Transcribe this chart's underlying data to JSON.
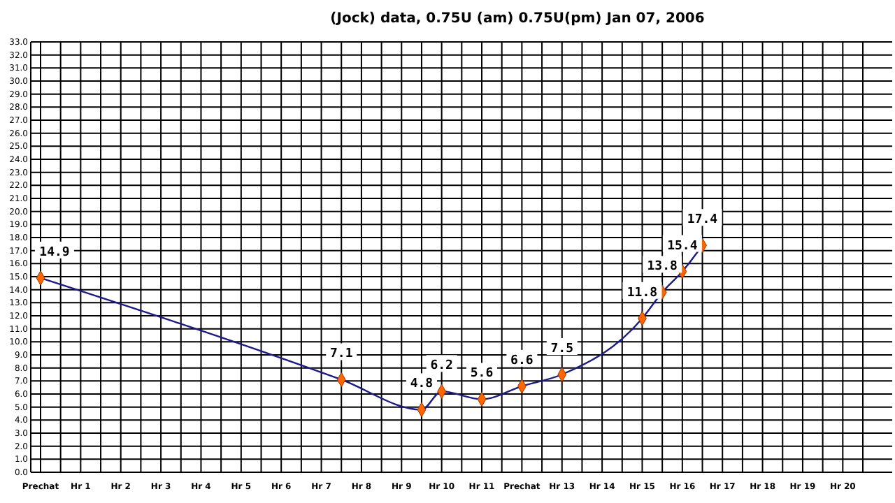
{
  "chart_data": {
    "type": "line",
    "title": "(Jock) data, 0.75U (am) 0.75U(pm)  Jan 07, 2006",
    "categories": [
      "Prechat",
      null,
      "Hr 1",
      null,
      "Hr 2",
      null,
      "Hr 3",
      null,
      "Hr 4",
      null,
      "Hr 5",
      null,
      "Hr 6",
      null,
      "Hr 7",
      null,
      "Hr 8",
      null,
      "Hr 9",
      null,
      "Hr 10",
      null,
      "Hr 11",
      null,
      "Prechat",
      null,
      "Hr 13",
      null,
      "Hr 14",
      null,
      "Hr 15",
      null,
      "Hr 16",
      null,
      "Hr 17",
      null,
      "Hr 18",
      null,
      "Hr 19",
      null,
      "Hr 20",
      null
    ],
    "series": [
      {
        "color": "#1a1a8c",
        "values": [
          14.9,
          null,
          null,
          null,
          null,
          null,
          null,
          null,
          null,
          null,
          null,
          null,
          null,
          null,
          null,
          7.1,
          null,
          null,
          null,
          4.8,
          6.2,
          null,
          5.6,
          null,
          6.6,
          null,
          7.5,
          null,
          null,
          null,
          11.8,
          13.8,
          15.4,
          17.4,
          null,
          null,
          null,
          null,
          null,
          null,
          null,
          null
        ],
        "colors": [
          "#ff6600",
          null,
          null,
          null,
          null,
          null,
          null,
          null,
          null,
          null,
          null,
          null,
          null,
          null,
          null,
          "#ff6600",
          null,
          null,
          null,
          "#ff6600",
          "#ff6600",
          null,
          "#ff6600",
          null,
          "#ff6600",
          null,
          "#ff6600",
          null,
          null,
          null,
          "#ff6600",
          "#ff6600",
          "#ff6600",
          "#ff6600",
          null,
          null,
          null,
          null,
          null,
          null,
          null,
          null
        ]
      }
    ],
    "marker": "diamond",
    "data_labels": true,
    "grid": true,
    "line_style": "solid",
    "ylim": [
      0,
      33
    ],
    "yticks": [
      {
        "value": 0,
        "label": "0.0"
      },
      {
        "value": 1,
        "label": "1.0"
      },
      {
        "value": 2,
        "label": "2.0"
      },
      {
        "value": 3,
        "label": "3.0"
      },
      {
        "value": 4,
        "label": "4.0"
      },
      {
        "value": 5,
        "label": "5.0"
      },
      {
        "value": 6,
        "label": "6.0"
      },
      {
        "value": 7,
        "label": "7.0"
      },
      {
        "value": 8,
        "label": "8.0"
      },
      {
        "value": 9,
        "label": "9.0"
      },
      {
        "value": 10,
        "label": "10.0"
      },
      {
        "value": 11,
        "label": "11.0"
      },
      {
        "value": 12,
        "label": "12.0"
      },
      {
        "value": 13,
        "label": "13.0"
      },
      {
        "value": 14,
        "label": "14.0"
      },
      {
        "value": 15,
        "label": "15.0"
      },
      {
        "value": 16,
        "label": "16.0"
      },
      {
        "value": 17,
        "label": "17.0"
      },
      {
        "value": 18,
        "label": "18.0"
      },
      {
        "value": 19,
        "label": "19.0"
      },
      {
        "value": 20,
        "label": "20.0"
      },
      {
        "value": 21,
        "label": "21.0"
      },
      {
        "value": 22,
        "label": "22.0"
      },
      {
        "value": 23,
        "label": "23.0"
      },
      {
        "value": 24,
        "label": "24.0"
      },
      {
        "value": 25,
        "label": "25.0"
      },
      {
        "value": 26,
        "label": "26.0"
      },
      {
        "value": 27,
        "label": "27.0"
      },
      {
        "value": 28,
        "label": "28.0"
      },
      {
        "value": 29,
        "label": "29.0"
      },
      {
        "value": 30,
        "label": "30.0"
      },
      {
        "value": 31,
        "label": "31.0"
      },
      {
        "value": 32,
        "label": "32.0"
      },
      {
        "value": 33,
        "label": "33.0"
      }
    ]
  }
}
